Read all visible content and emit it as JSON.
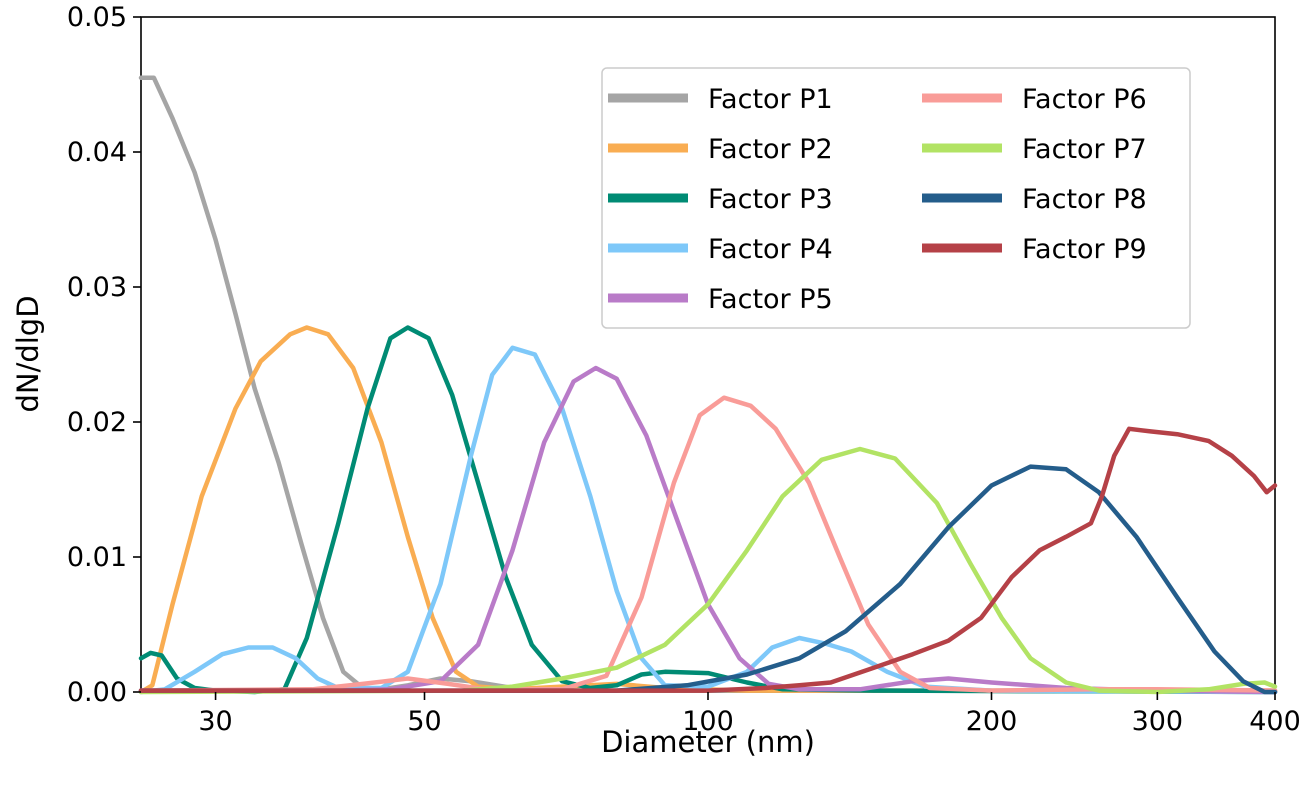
{
  "chart_data": {
    "type": "line",
    "xlabel": "Diameter (nm)",
    "ylabel": "dN/dlgD",
    "xscale": "log",
    "xlim": [
      25,
      400
    ],
    "ylim": [
      0,
      0.05
    ],
    "x_ticks": [
      {
        "value": 30,
        "label": "30"
      },
      {
        "value": 50,
        "label": "50"
      },
      {
        "value": 100,
        "label": "100"
      },
      {
        "value": 200,
        "label": "200"
      },
      {
        "value": 300,
        "label": "300"
      },
      {
        "value": 400,
        "label": "400"
      }
    ],
    "y_ticks": [
      {
        "value": 0,
        "label": "0.00"
      },
      {
        "value": 0.01,
        "label": "0.01"
      },
      {
        "value": 0.02,
        "label": "0.02"
      },
      {
        "value": 0.03,
        "label": "0.03"
      },
      {
        "value": 0.04,
        "label": "0.04"
      },
      {
        "value": 0.05,
        "label": "0.05"
      }
    ],
    "grid": false,
    "legend_position": "top-right",
    "legend_columns": 2,
    "series": [
      {
        "name": "Factor P1",
        "color": "#a5a5a5",
        "points": [
          [
            25,
            0.0455
          ],
          [
            25.8,
            0.0455
          ],
          [
            27,
            0.0425
          ],
          [
            28.5,
            0.0385
          ],
          [
            30,
            0.0335
          ],
          [
            31.5,
            0.028
          ],
          [
            33,
            0.0225
          ],
          [
            35,
            0.017
          ],
          [
            37,
            0.011
          ],
          [
            39,
            0.0055
          ],
          [
            41,
            0.0015
          ],
          [
            43,
            0.0003
          ],
          [
            45,
            0.0002
          ],
          [
            48,
            0.0005
          ],
          [
            52,
            0.001
          ],
          [
            56,
            0.0008
          ],
          [
            62,
            0.0003
          ],
          [
            70,
            0.0001
          ],
          [
            100,
            0.0001
          ],
          [
            200,
            0.0001
          ],
          [
            400,
            0.0001
          ]
        ]
      },
      {
        "name": "Factor P2",
        "color": "#f9ad52",
        "points": [
          [
            25,
            0.0
          ],
          [
            25.7,
            0.0005
          ],
          [
            27,
            0.0065
          ],
          [
            29,
            0.0145
          ],
          [
            31.5,
            0.021
          ],
          [
            33.5,
            0.0245
          ],
          [
            36,
            0.0265
          ],
          [
            37.5,
            0.027
          ],
          [
            39.5,
            0.0265
          ],
          [
            42,
            0.024
          ],
          [
            45,
            0.0185
          ],
          [
            48,
            0.0115
          ],
          [
            51,
            0.0055
          ],
          [
            54,
            0.0015
          ],
          [
            57,
            0.0004
          ],
          [
            62,
            0.0002
          ],
          [
            70,
            0.0004
          ],
          [
            80,
            0.0006
          ],
          [
            90,
            0.0003
          ],
          [
            110,
            0.0001
          ],
          [
            200,
            0.0001
          ],
          [
            400,
            0.0001
          ]
        ]
      },
      {
        "name": "Factor P3",
        "color": "#008b74",
        "points": [
          [
            25,
            0.0025
          ],
          [
            25.6,
            0.0029
          ],
          [
            26.3,
            0.0027
          ],
          [
            27.3,
            0.001
          ],
          [
            28.5,
            0.0003
          ],
          [
            30,
            0.0001
          ],
          [
            33,
            0.0
          ],
          [
            35.5,
            0.0002
          ],
          [
            37.5,
            0.004
          ],
          [
            40.5,
            0.0125
          ],
          [
            43.5,
            0.021
          ],
          [
            46,
            0.0262
          ],
          [
            48,
            0.027
          ],
          [
            50.5,
            0.0262
          ],
          [
            53.5,
            0.022
          ],
          [
            57,
            0.0155
          ],
          [
            61,
            0.0085
          ],
          [
            65,
            0.0035
          ],
          [
            70,
            0.0008
          ],
          [
            75,
            0.0003
          ],
          [
            80,
            0.0005
          ],
          [
            85,
            0.0013
          ],
          [
            90,
            0.0015
          ],
          [
            100,
            0.0014
          ],
          [
            110,
            0.0007
          ],
          [
            120,
            0.0002
          ],
          [
            150,
            0.0001
          ],
          [
            400,
            0.0
          ]
        ]
      },
      {
        "name": "Factor P4",
        "color": "#7ec8f9",
        "points": [
          [
            25,
            0.0
          ],
          [
            26.5,
            0.0002
          ],
          [
            28.5,
            0.0015
          ],
          [
            30.5,
            0.0028
          ],
          [
            32.5,
            0.0033
          ],
          [
            34.5,
            0.0033
          ],
          [
            36.5,
            0.0025
          ],
          [
            38.5,
            0.001
          ],
          [
            40.5,
            0.0003
          ],
          [
            45,
            0.0003
          ],
          [
            48,
            0.0015
          ],
          [
            52,
            0.008
          ],
          [
            56,
            0.0175
          ],
          [
            59,
            0.0235
          ],
          [
            62,
            0.0255
          ],
          [
            65.5,
            0.025
          ],
          [
            70,
            0.021
          ],
          [
            75,
            0.0145
          ],
          [
            80,
            0.0075
          ],
          [
            85,
            0.0025
          ],
          [
            90,
            0.0005
          ],
          [
            100,
            0.0004
          ],
          [
            110,
            0.0015
          ],
          [
            117,
            0.0033
          ],
          [
            125,
            0.004
          ],
          [
            133,
            0.0036
          ],
          [
            142,
            0.003
          ],
          [
            155,
            0.0015
          ],
          [
            170,
            0.0004
          ],
          [
            200,
            0.0001
          ],
          [
            400,
            0.0
          ]
        ]
      },
      {
        "name": "Factor P5",
        "color": "#b97bc8",
        "points": [
          [
            25,
            0.0001
          ],
          [
            40,
            0.0001
          ],
          [
            46,
            0.0002
          ],
          [
            52,
            0.0008
          ],
          [
            57,
            0.0035
          ],
          [
            62,
            0.0105
          ],
          [
            67,
            0.0185
          ],
          [
            72,
            0.023
          ],
          [
            76,
            0.024
          ],
          [
            80,
            0.0232
          ],
          [
            86,
            0.019
          ],
          [
            93,
            0.0125
          ],
          [
            100,
            0.0065
          ],
          [
            108,
            0.0025
          ],
          [
            116,
            0.0006
          ],
          [
            125,
            0.0002
          ],
          [
            145,
            0.0002
          ],
          [
            165,
            0.0008
          ],
          [
            180,
            0.001
          ],
          [
            200,
            0.0007
          ],
          [
            240,
            0.0003
          ],
          [
            300,
            0.0001
          ],
          [
            400,
            0.0
          ]
        ]
      },
      {
        "name": "Factor P6",
        "color": "#f99c98",
        "points": [
          [
            25,
            0.0001
          ],
          [
            38,
            0.0002
          ],
          [
            43,
            0.0006
          ],
          [
            48,
            0.001
          ],
          [
            53,
            0.0006
          ],
          [
            58,
            0.0002
          ],
          [
            70,
            0.0002
          ],
          [
            78,
            0.0012
          ],
          [
            85,
            0.007
          ],
          [
            92,
            0.0155
          ],
          [
            98,
            0.0205
          ],
          [
            104,
            0.0218
          ],
          [
            111,
            0.0212
          ],
          [
            118,
            0.0195
          ],
          [
            128,
            0.0155
          ],
          [
            138,
            0.01
          ],
          [
            148,
            0.005
          ],
          [
            160,
            0.0015
          ],
          [
            172,
            0.0003
          ],
          [
            200,
            0.0001
          ],
          [
            260,
            0.0002
          ],
          [
            300,
            0.0002
          ],
          [
            400,
            0.0001
          ]
        ]
      },
      {
        "name": "Factor P7",
        "color": "#b2e364",
        "points": [
          [
            25,
            0.0
          ],
          [
            55,
            0.0001
          ],
          [
            62,
            0.0004
          ],
          [
            70,
            0.001
          ],
          [
            80,
            0.0018
          ],
          [
            90,
            0.0035
          ],
          [
            100,
            0.0065
          ],
          [
            110,
            0.0105
          ],
          [
            120,
            0.0145
          ],
          [
            132,
            0.0172
          ],
          [
            145,
            0.018
          ],
          [
            158,
            0.0173
          ],
          [
            175,
            0.014
          ],
          [
            190,
            0.0095
          ],
          [
            205,
            0.0055
          ],
          [
            220,
            0.0025
          ],
          [
            240,
            0.0007
          ],
          [
            260,
            0.0001
          ],
          [
            300,
            0.0
          ],
          [
            340,
            0.0002
          ],
          [
            370,
            0.0006
          ],
          [
            390,
            0.0007
          ],
          [
            400,
            0.0004
          ]
        ]
      },
      {
        "name": "Factor P8",
        "color": "#245d8b",
        "points": [
          [
            25,
            0.0001
          ],
          [
            80,
            0.0001
          ],
          [
            95,
            0.0005
          ],
          [
            110,
            0.0013
          ],
          [
            125,
            0.0025
          ],
          [
            140,
            0.0045
          ],
          [
            160,
            0.008
          ],
          [
            180,
            0.0122
          ],
          [
            200,
            0.0153
          ],
          [
            220,
            0.0167
          ],
          [
            240,
            0.0165
          ],
          [
            260,
            0.0148
          ],
          [
            285,
            0.0115
          ],
          [
            315,
            0.007
          ],
          [
            345,
            0.003
          ],
          [
            370,
            0.0008
          ],
          [
            390,
            0.0
          ],
          [
            400,
            0.0
          ]
        ]
      },
      {
        "name": "Factor P9",
        "color": "#b54147",
        "points": [
          [
            25,
            0.0001
          ],
          [
            100,
            0.0001
          ],
          [
            115,
            0.0003
          ],
          [
            125,
            0.0005
          ],
          [
            135,
            0.0007
          ],
          [
            150,
            0.0018
          ],
          [
            165,
            0.0028
          ],
          [
            180,
            0.0038
          ],
          [
            195,
            0.0055
          ],
          [
            210,
            0.0085
          ],
          [
            225,
            0.0105
          ],
          [
            240,
            0.0115
          ],
          [
            255,
            0.0125
          ],
          [
            262,
            0.0145
          ],
          [
            270,
            0.0175
          ],
          [
            280,
            0.0195
          ],
          [
            295,
            0.0193
          ],
          [
            315,
            0.0191
          ],
          [
            340,
            0.0186
          ],
          [
            360,
            0.0175
          ],
          [
            380,
            0.016
          ],
          [
            392,
            0.0148
          ],
          [
            400,
            0.0153
          ]
        ]
      }
    ]
  }
}
